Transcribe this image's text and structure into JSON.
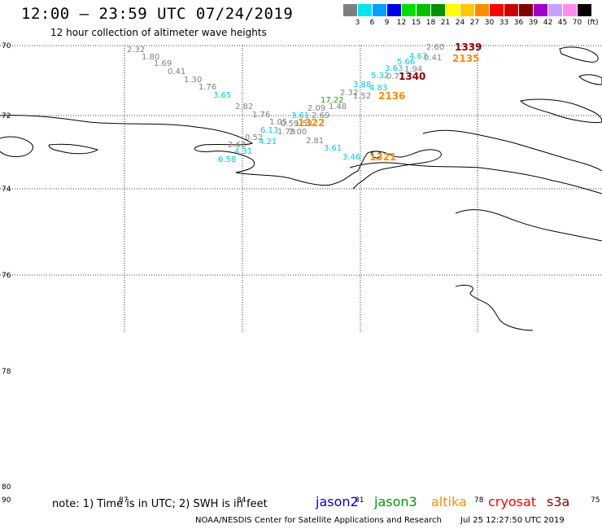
{
  "title": "12:00 – 23:59 UTC 07/24/2019",
  "subtitle": "12 hour collection of altimeter wave heights",
  "colorbar": {
    "unit": "(ft)",
    "stops": [
      {
        "label": "3",
        "color": "#7f7f7f"
      },
      {
        "label": "6",
        "color": "#00e6f0"
      },
      {
        "label": "9",
        "color": "#00a0ff"
      },
      {
        "label": "12",
        "color": "#0000e6"
      },
      {
        "label": "15",
        "color": "#00e000"
      },
      {
        "label": "18",
        "color": "#00c000"
      },
      {
        "label": "21",
        "color": "#009000"
      },
      {
        "label": "24",
        "color": "#ffff00"
      },
      {
        "label": "27",
        "color": "#ffc800"
      },
      {
        "label": "30",
        "color": "#ff8c00"
      },
      {
        "label": "33",
        "color": "#ff0000"
      },
      {
        "label": "36",
        "color": "#c80000"
      },
      {
        "label": "39",
        "color": "#820000"
      },
      {
        "label": "42",
        "color": "#a000c8"
      },
      {
        "label": "45",
        "color": "#c8a0ff"
      },
      {
        "label": "70",
        "color": "#ff8cf0"
      },
      {
        "label": "",
        "color": "#000000"
      }
    ]
  },
  "lat_labels": [
    "70",
    "72",
    "74",
    "76",
    "78",
    "80",
    "90"
  ],
  "lon_labels": [
    "87",
    "84",
    "81",
    "78",
    "75"
  ],
  "wave_heights": [
    {
      "text": "2.32",
      "color": "#808080"
    },
    {
      "text": "1.80",
      "color": "#808080"
    },
    {
      "text": "1.69",
      "color": "#808080"
    },
    {
      "text": "0.41",
      "color": "#808080"
    },
    {
      "text": "1.30",
      "color": "#808080"
    },
    {
      "text": "1.76",
      "color": "#808080"
    },
    {
      "text": "3.65",
      "color": "#00ccdd"
    },
    {
      "text": "2.82",
      "color": "#808080"
    },
    {
      "text": "1.76",
      "color": "#808080"
    },
    {
      "text": "1.05",
      "color": "#808080"
    },
    {
      "text": "0.59",
      "color": "#808080"
    },
    {
      "text": "1.53",
      "color": "#808080"
    },
    {
      "text": "1.79",
      "color": "#808080"
    },
    {
      "text": "2.00",
      "color": "#808080"
    },
    {
      "text": "6.13",
      "color": "#00ccdd"
    },
    {
      "text": "0.52",
      "color": "#808080"
    },
    {
      "text": "4.21",
      "color": "#00ccdd"
    },
    {
      "text": "2.63",
      "color": "#808080"
    },
    {
      "text": "4.31",
      "color": "#00ccdd"
    },
    {
      "text": "6.58",
      "color": "#00ccdd"
    },
    {
      "text": "3.61",
      "color": "#00ccdd"
    },
    {
      "text": "2.69",
      "color": "#808080"
    },
    {
      "text": "2.09",
      "color": "#808080"
    },
    {
      "text": "1.48",
      "color": "#808080"
    },
    {
      "text": "17.22",
      "color": "#22aa00"
    },
    {
      "text": "2.81",
      "color": "#808080"
    },
    {
      "text": "3.61",
      "color": "#00ccdd"
    },
    {
      "text": "3.46",
      "color": "#00ccdd"
    },
    {
      "text": "2.32",
      "color": "#808080"
    },
    {
      "text": "1.52",
      "color": "#808080"
    },
    {
      "text": "3.88",
      "color": "#00ccdd"
    },
    {
      "text": "4.83",
      "color": "#00ccdd"
    },
    {
      "text": "5.32",
      "color": "#00ccdd"
    },
    {
      "text": "0.77",
      "color": "#808080"
    },
    {
      "text": "3.63",
      "color": "#00ccdd"
    },
    {
      "text": "1.94",
      "color": "#808080"
    },
    {
      "text": "5.66",
      "color": "#00ccdd"
    },
    {
      "text": "4.63",
      "color": "#00ccdd"
    },
    {
      "text": "0.41",
      "color": "#808080"
    },
    {
      "text": "2.60",
      "color": "#808080"
    }
  ],
  "time_labels": [
    {
      "text": "1339",
      "color": "#8b0000"
    },
    {
      "text": "2135",
      "color": "#ff8c00"
    },
    {
      "text": "1340",
      "color": "#8b0000"
    },
    {
      "text": "2136",
      "color": "#ff8c00"
    },
    {
      "text": "1322",
      "color": "#ff8c00"
    },
    {
      "text": "1321",
      "color": "#ff8c00"
    }
  ],
  "note": "note: 1) Time is in UTC; 2) SWH is in feet",
  "satellites": [
    {
      "name": "jason2",
      "color": "#0000dd"
    },
    {
      "name": "jason3",
      "color": "#009900"
    },
    {
      "name": "altika",
      "color": "#ff8c00"
    },
    {
      "name": "cryosat",
      "color": "#ff0000"
    },
    {
      "name": "s3a",
      "color": "#8b0000"
    }
  ],
  "credit": "NOAA/NESDIS Center for Satellite Applications and Research",
  "credit_time": "Jul 25 12:27:50 UTC 2019"
}
